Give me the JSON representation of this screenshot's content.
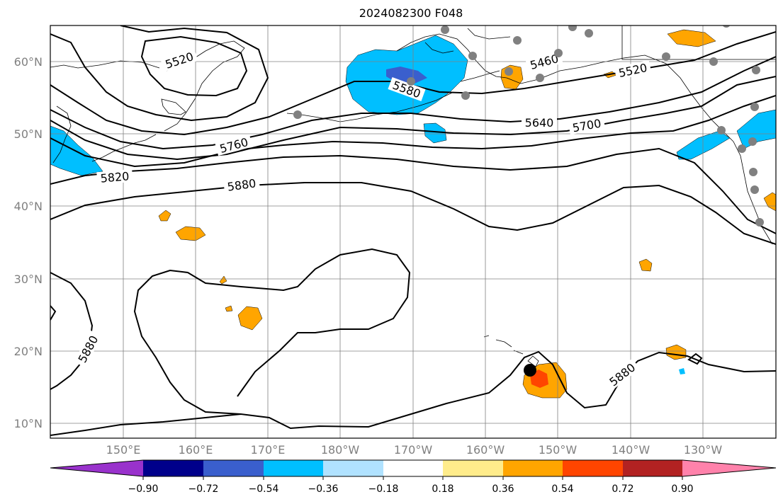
{
  "title": "2024082300 F048",
  "map": {
    "lat_labels": [
      "60°N",
      "50°N",
      "40°N",
      "30°N",
      "20°N",
      "10°N"
    ],
    "lon_labels": [
      "150°E",
      "160°E",
      "170°E",
      "180°W",
      "170°W",
      "160°W",
      "150°W",
      "140°W",
      "130°W"
    ],
    "contour_labels": [
      "5520",
      "5460",
      "5520",
      "5580",
      "5640",
      "5700",
      "5760",
      "5820",
      "5880",
      "5880",
      "5880"
    ],
    "colors": {
      "contour": "#000000",
      "grid": "#808080",
      "coast": "#000000",
      "station": "#808080",
      "marker": "#000000",
      "blue_region": "#00bfff",
      "dark_blue_region": "#3a5fcd",
      "orange_region": "#ffa500",
      "red_region": "#ff4500"
    }
  },
  "colorbar": {
    "colors": [
      "#9932cc",
      "#00008b",
      "#3a5fcd",
      "#00bfff",
      "#b0e2ff",
      "#ffffff",
      "#ffec8b",
      "#ffa500",
      "#ff4500",
      "#b22222",
      "#ff82ab"
    ],
    "tick_labels": [
      "−0.90",
      "−0.72",
      "−0.54",
      "−0.36",
      "−0.18",
      "0.18",
      "0.36",
      "0.54",
      "0.72",
      "0.90"
    ]
  }
}
